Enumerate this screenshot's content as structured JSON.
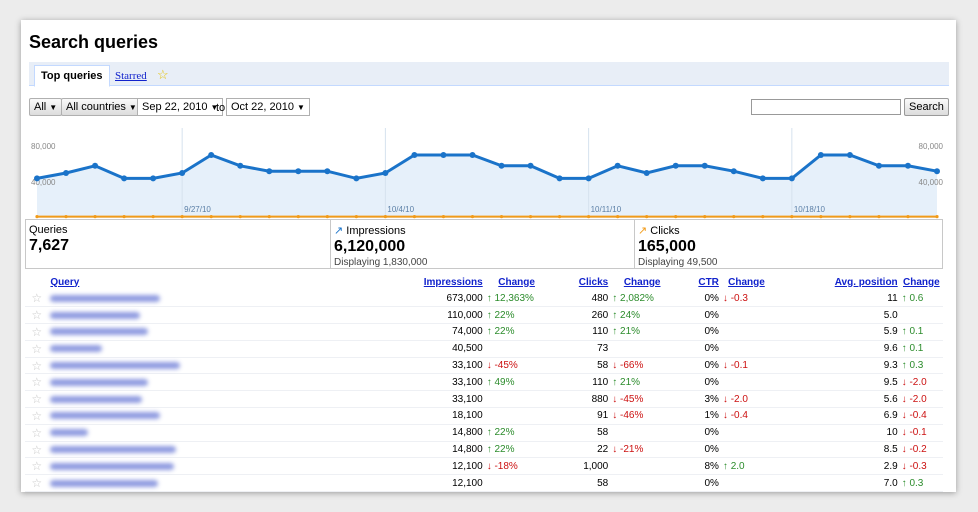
{
  "page": {
    "title": "Search queries"
  },
  "tabs": [
    {
      "label": "Top queries"
    },
    {
      "label": "Starred"
    }
  ],
  "filters": {
    "type_select": "All",
    "country_select": "All countries",
    "date_from": "Sep 22, 2010",
    "to_label": "to",
    "date_to": "Oct 22, 2010",
    "search_value": "",
    "search_button": "Search"
  },
  "chart_data": {
    "type": "line",
    "y_ticks": [
      "80,000",
      "40,000"
    ],
    "ylim": [
      0,
      100000
    ],
    "x_labels": [
      "9/27/10",
      "10/4/10",
      "10/11/10",
      "10/18/10"
    ],
    "x_label_positions": [
      5,
      12,
      19,
      26
    ],
    "series": [
      {
        "name": "Impressions",
        "color": "#1a73c9",
        "values": [
          44000,
          50000,
          58000,
          44000,
          44000,
          50000,
          70000,
          58000,
          52000,
          52000,
          52000,
          44000,
          50000,
          70000,
          70000,
          70000,
          58000,
          58000,
          44000,
          44000,
          58000,
          50000,
          58000,
          58000,
          52000,
          44000,
          44000,
          70000,
          70000,
          58000,
          58000,
          52000
        ]
      },
      {
        "name": "Clicks",
        "color": "#f29b19",
        "values": [
          1500,
          1500,
          1500,
          1500,
          1500,
          1500,
          1500,
          1500,
          1500,
          1500,
          1500,
          1500,
          1500,
          1500,
          1500,
          1500,
          1500,
          1500,
          1500,
          1500,
          1500,
          1500,
          1500,
          1500,
          1500,
          1500,
          1500,
          1500,
          1500,
          1500,
          1500,
          1500
        ]
      }
    ]
  },
  "stats": {
    "queries": {
      "label": "Queries",
      "value": "7,627"
    },
    "impressions": {
      "label": "Impressions",
      "value": "6,120,000",
      "sub": "Displaying 1,830,000"
    },
    "clicks": {
      "label": "Clicks",
      "value": "165,000",
      "sub": "Displaying 49,500"
    }
  },
  "table": {
    "headers": {
      "query": "Query",
      "impressions": "Impressions",
      "impressions_change": "Change",
      "clicks": "Clicks",
      "clicks_change": "Change",
      "ctr": "CTR",
      "ctr_change": "Change",
      "position": "Avg. position",
      "position_change": "Change"
    },
    "rows": [
      {
        "impressions": "673,000",
        "imp_chg": "12,363%",
        "imp_dir": "up",
        "clicks": "480",
        "clk_chg": "2,082%",
        "clk_dir": "up",
        "ctr": "0%",
        "ctr_chg": "-0.3",
        "ctr_dir": "down",
        "pos": "11",
        "pos_chg": "0.6",
        "pos_dir": "up",
        "qw": 110
      },
      {
        "impressions": "110,000",
        "imp_chg": "22%",
        "imp_dir": "up",
        "clicks": "260",
        "clk_chg": "24%",
        "clk_dir": "up",
        "ctr": "0%",
        "ctr_chg": "",
        "ctr_dir": "",
        "pos": "5.0",
        "pos_chg": "",
        "pos_dir": "",
        "qw": 90
      },
      {
        "impressions": "74,000",
        "imp_chg": "22%",
        "imp_dir": "up",
        "clicks": "110",
        "clk_chg": "21%",
        "clk_dir": "up",
        "ctr": "0%",
        "ctr_chg": "",
        "ctr_dir": "",
        "pos": "5.9",
        "pos_chg": "0.1",
        "pos_dir": "up",
        "qw": 98
      },
      {
        "impressions": "40,500",
        "imp_chg": "",
        "imp_dir": "",
        "clicks": "73",
        "clk_chg": "",
        "clk_dir": "",
        "ctr": "0%",
        "ctr_chg": "",
        "ctr_dir": "",
        "pos": "9.6",
        "pos_chg": "0.1",
        "pos_dir": "up",
        "qw": 52
      },
      {
        "impressions": "33,100",
        "imp_chg": "-45%",
        "imp_dir": "down",
        "clicks": "58",
        "clk_chg": "-66%",
        "clk_dir": "down",
        "ctr": "0%",
        "ctr_chg": "-0.1",
        "ctr_dir": "down",
        "pos": "9.3",
        "pos_chg": "0.3",
        "pos_dir": "up",
        "qw": 130
      },
      {
        "impressions": "33,100",
        "imp_chg": "49%",
        "imp_dir": "up",
        "clicks": "110",
        "clk_chg": "21%",
        "clk_dir": "up",
        "ctr": "0%",
        "ctr_chg": "",
        "ctr_dir": "",
        "pos": "9.5",
        "pos_chg": "-2.0",
        "pos_dir": "down",
        "qw": 98
      },
      {
        "impressions": "33,100",
        "imp_chg": "",
        "imp_dir": "",
        "clicks": "880",
        "clk_chg": "-45%",
        "clk_dir": "down",
        "ctr": "3%",
        "ctr_chg": "-2.0",
        "ctr_dir": "down",
        "pos": "5.6",
        "pos_chg": "-2.0",
        "pos_dir": "down",
        "qw": 92
      },
      {
        "impressions": "18,100",
        "imp_chg": "",
        "imp_dir": "",
        "clicks": "91",
        "clk_chg": "-46%",
        "clk_dir": "down",
        "ctr": "1%",
        "ctr_chg": "-0.4",
        "ctr_dir": "down",
        "pos": "6.9",
        "pos_chg": "-0.4",
        "pos_dir": "down",
        "qw": 110
      },
      {
        "impressions": "14,800",
        "imp_chg": "22%",
        "imp_dir": "up",
        "clicks": "58",
        "clk_chg": "",
        "clk_dir": "",
        "ctr": "0%",
        "ctr_chg": "",
        "ctr_dir": "",
        "pos": "10",
        "pos_chg": "-0.1",
        "pos_dir": "down",
        "qw": 38
      },
      {
        "impressions": "14,800",
        "imp_chg": "22%",
        "imp_dir": "up",
        "clicks": "22",
        "clk_chg": "-21%",
        "clk_dir": "down",
        "ctr": "0%",
        "ctr_chg": "",
        "ctr_dir": "",
        "pos": "8.5",
        "pos_chg": "-0.2",
        "pos_dir": "down",
        "qw": 126
      },
      {
        "impressions": "12,100",
        "imp_chg": "-18%",
        "imp_dir": "down",
        "clicks": "1,000",
        "clk_chg": "",
        "clk_dir": "",
        "ctr": "8%",
        "ctr_chg": "2.0",
        "ctr_dir": "up",
        "pos": "2.9",
        "pos_chg": "-0.3",
        "pos_dir": "down",
        "qw": 124
      },
      {
        "impressions": "12,100",
        "imp_chg": "",
        "imp_dir": "",
        "clicks": "58",
        "clk_chg": "",
        "clk_dir": "",
        "ctr": "0%",
        "ctr_chg": "",
        "ctr_dir": "",
        "pos": "7.0",
        "pos_chg": "0.3",
        "pos_dir": "up",
        "qw": 108
      }
    ]
  }
}
